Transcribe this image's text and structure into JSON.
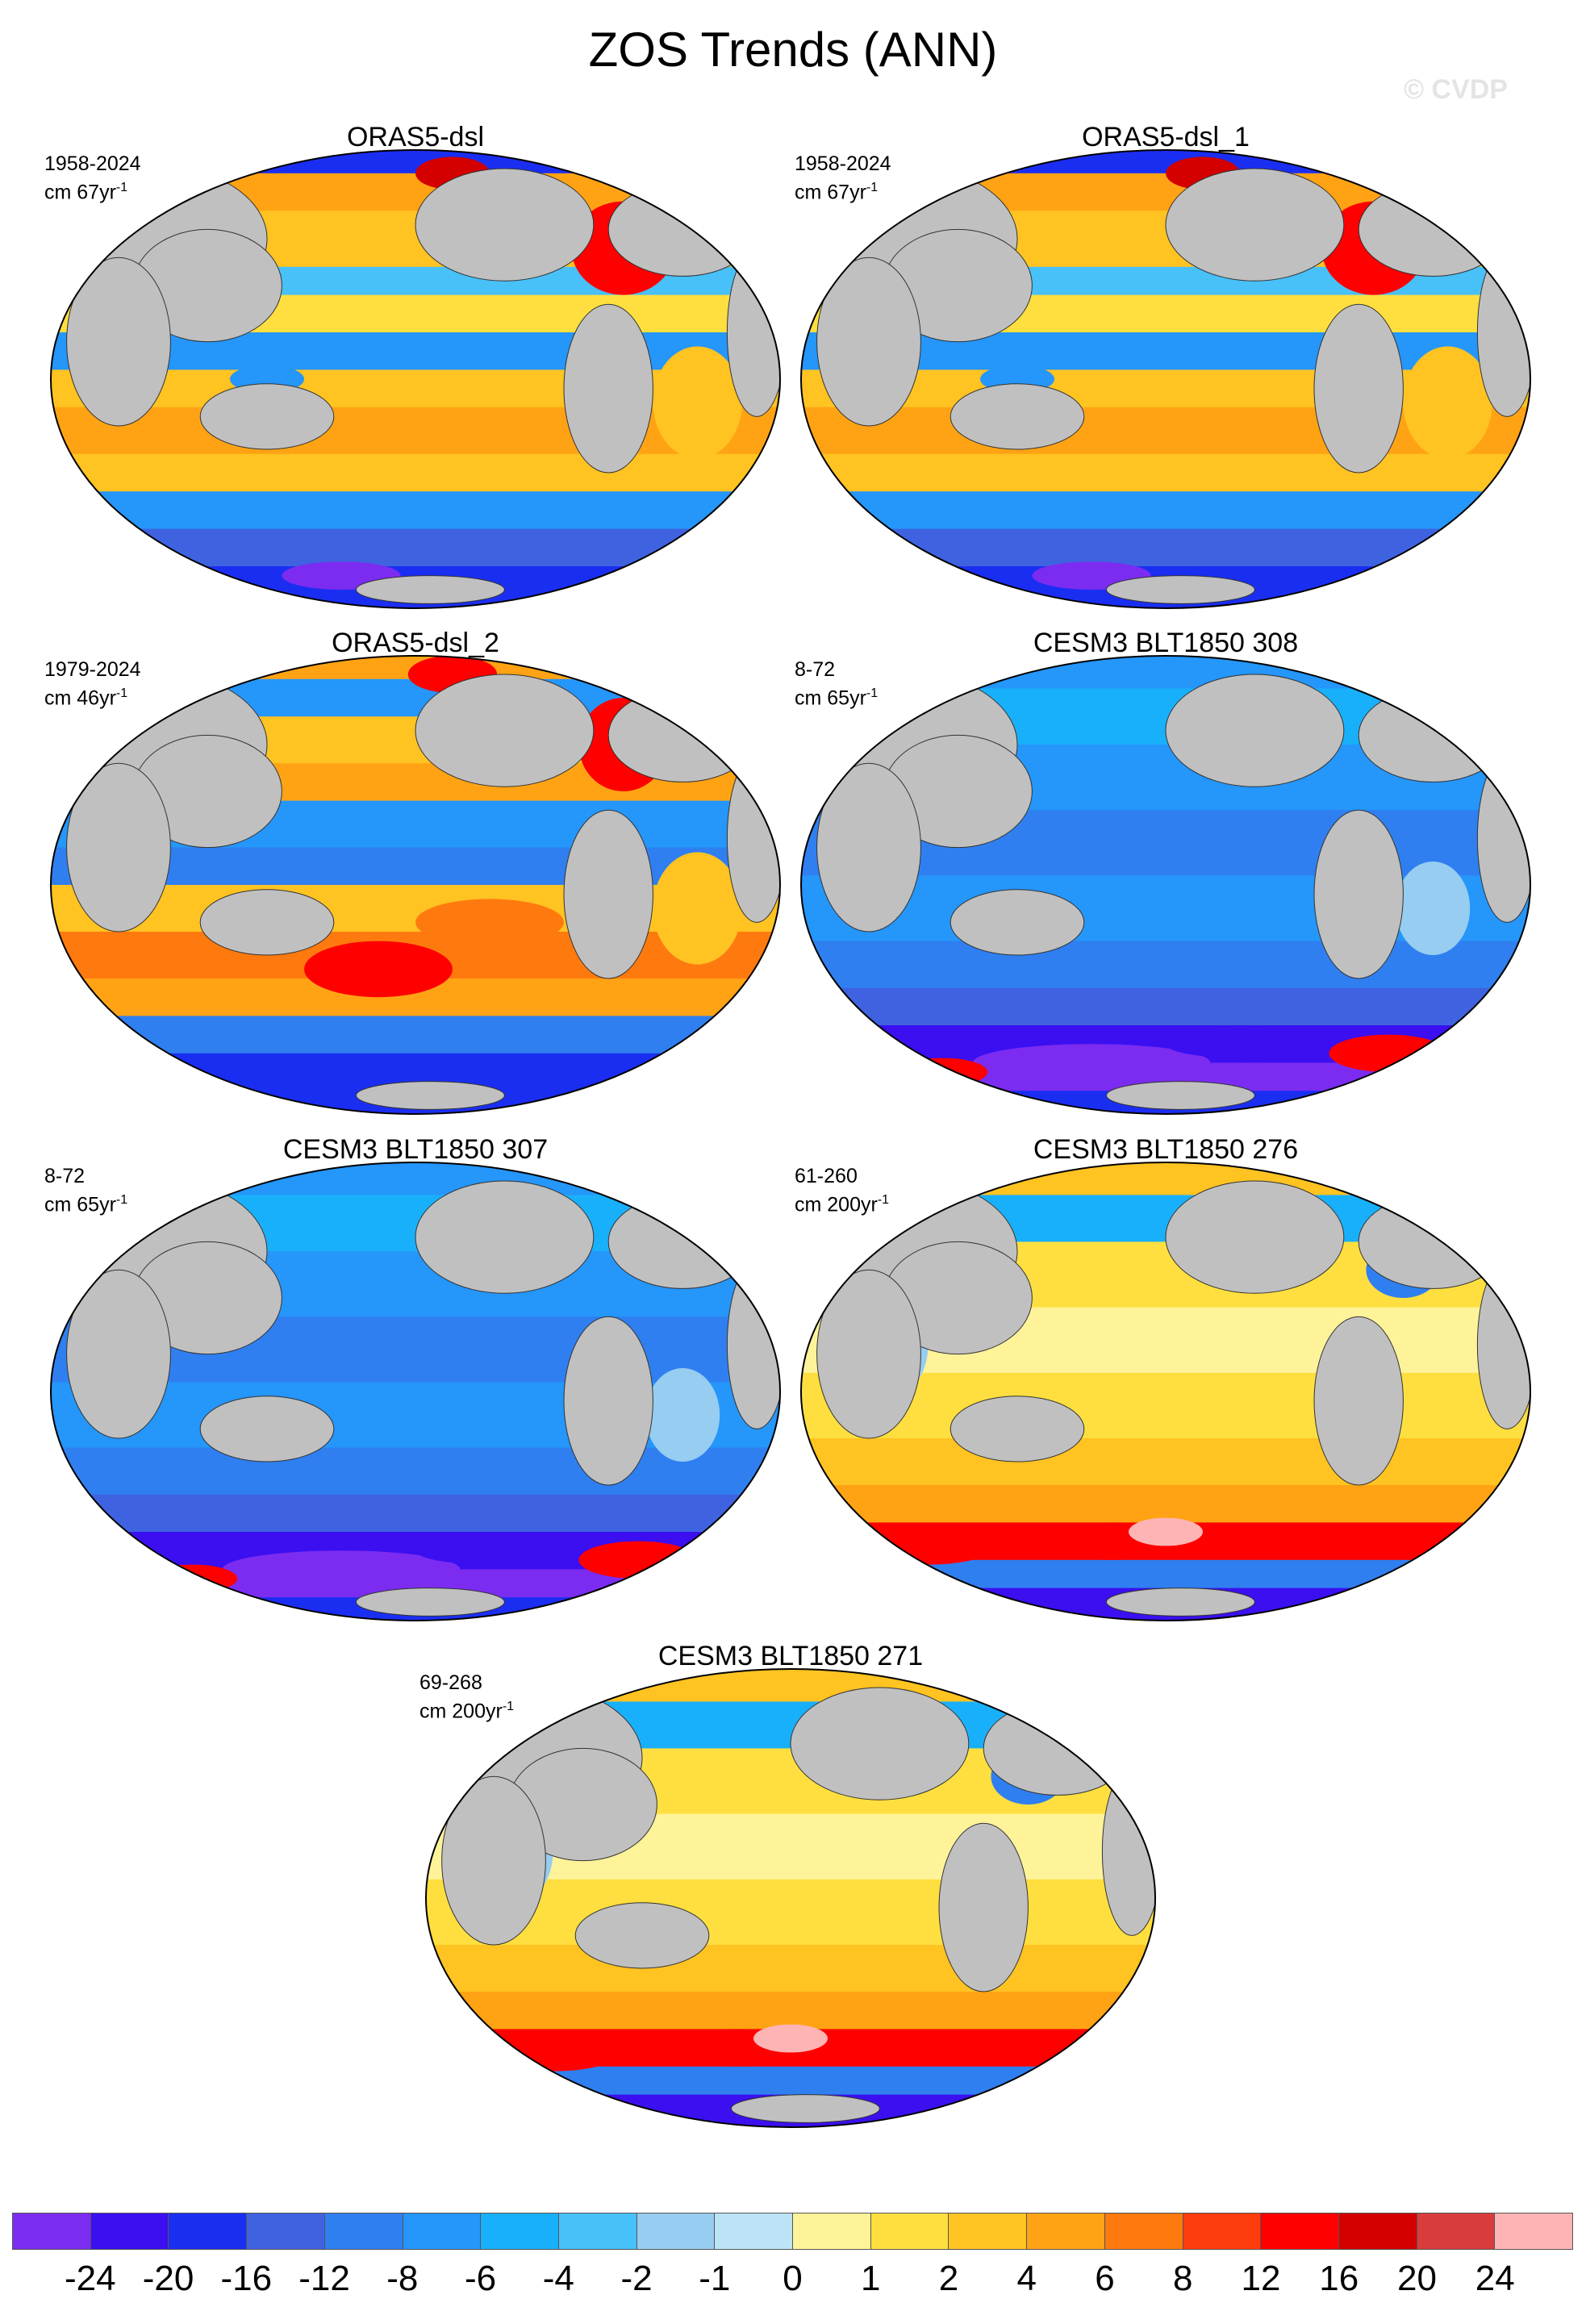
{
  "figure": {
    "title": "ZOS Trends (ANN)",
    "watermark": "© CVDP"
  },
  "panels": [
    {
      "title": "ORAS5-dsl",
      "period": "1958-2024",
      "units_prefix": "cm 67yr",
      "units_exp": "-1",
      "pattern": "oras5"
    },
    {
      "title": "ORAS5-dsl_1",
      "period": "1958-2024",
      "units_prefix": "cm 67yr",
      "units_exp": "-1",
      "pattern": "oras5"
    },
    {
      "title": "ORAS5-dsl_2",
      "period": "1979-2024",
      "units_prefix": "cm 46yr",
      "units_exp": "-1",
      "pattern": "oras5_2"
    },
    {
      "title": "CESM3 BLT1850 308",
      "period": "8-72",
      "units_prefix": "cm 65yr",
      "units_exp": "-1",
      "pattern": "cesm_neg"
    },
    {
      "title": "CESM3 BLT1850 307",
      "period": "8-72",
      "units_prefix": "cm 65yr",
      "units_exp": "-1",
      "pattern": "cesm_neg"
    },
    {
      "title": "CESM3 BLT1850 276",
      "period": "61-260",
      "units_prefix": "cm 200yr",
      "units_exp": "-1",
      "pattern": "cesm_pos"
    },
    {
      "title": "CESM3 BLT1850 271",
      "period": "69-268",
      "units_prefix": "cm 200yr",
      "units_exp": "-1",
      "pattern": "cesm_pos"
    }
  ],
  "colorbar": {
    "labels": [
      "-24",
      "-20",
      "-16",
      "-12",
      "-8",
      "-6",
      "-4",
      "-2",
      "-1",
      "0",
      "1",
      "2",
      "4",
      "6",
      "8",
      "12",
      "16",
      "20",
      "24"
    ],
    "colors": [
      "#7b2cf0",
      "#3b0ff0",
      "#1a2ef2",
      "#3f63e0",
      "#2f7ff0",
      "#2596fa",
      "#19b0fb",
      "#48c0f8",
      "#96cdf0",
      "#bde3f6",
      "#fff39a",
      "#ffdf3f",
      "#ffc322",
      "#ffa314",
      "#ff7a0e",
      "#ff3c0e",
      "#ff0000",
      "#d40000",
      "#d93c3c",
      "#ffb4b4"
    ]
  }
}
